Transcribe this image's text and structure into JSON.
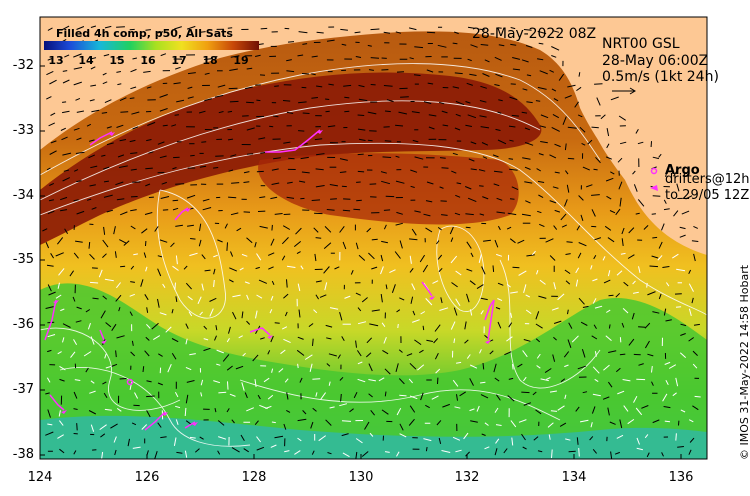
{
  "map": {
    "title": "28-May-2022 08Z",
    "product": "NRT00 GSL",
    "current_time": "28-May 06:00Z",
    "vector_scale": "0.5m/s (1kt 24h)",
    "credit": "© IMOS 31-May-2022 14:58 Hobart"
  },
  "colorbar": {
    "title": "Filled 4h comp, p50, All Sats",
    "ticks": [
      "13",
      "14",
      "15",
      "16",
      "17",
      "18",
      "19"
    ],
    "range": [
      12.5,
      19.5
    ]
  },
  "axes": {
    "lon_ticks": [
      "124",
      "126",
      "128",
      "130",
      "132",
      "134",
      "136"
    ],
    "lat_ticks": [
      "-32",
      "-33",
      "-34",
      "-35",
      "-36",
      "-37",
      "-38"
    ],
    "lon_range": [
      124,
      136.5
    ],
    "lat_range": [
      -31.35,
      -38.1
    ]
  },
  "legend": {
    "argo_label": "Argo",
    "drifters_label": "drifters@12h",
    "drifters_range": "to 29/05 12Z"
  },
  "colors": {
    "land": "#fdc894",
    "sst_warm": "#8b1a05",
    "sst_mid": "#e8a018",
    "sst_cool": "#38c830",
    "sst_cold": "#30b8a8",
    "markers": "#ff30ff",
    "contours": "#ffffff",
    "vectors": "#000000"
  }
}
